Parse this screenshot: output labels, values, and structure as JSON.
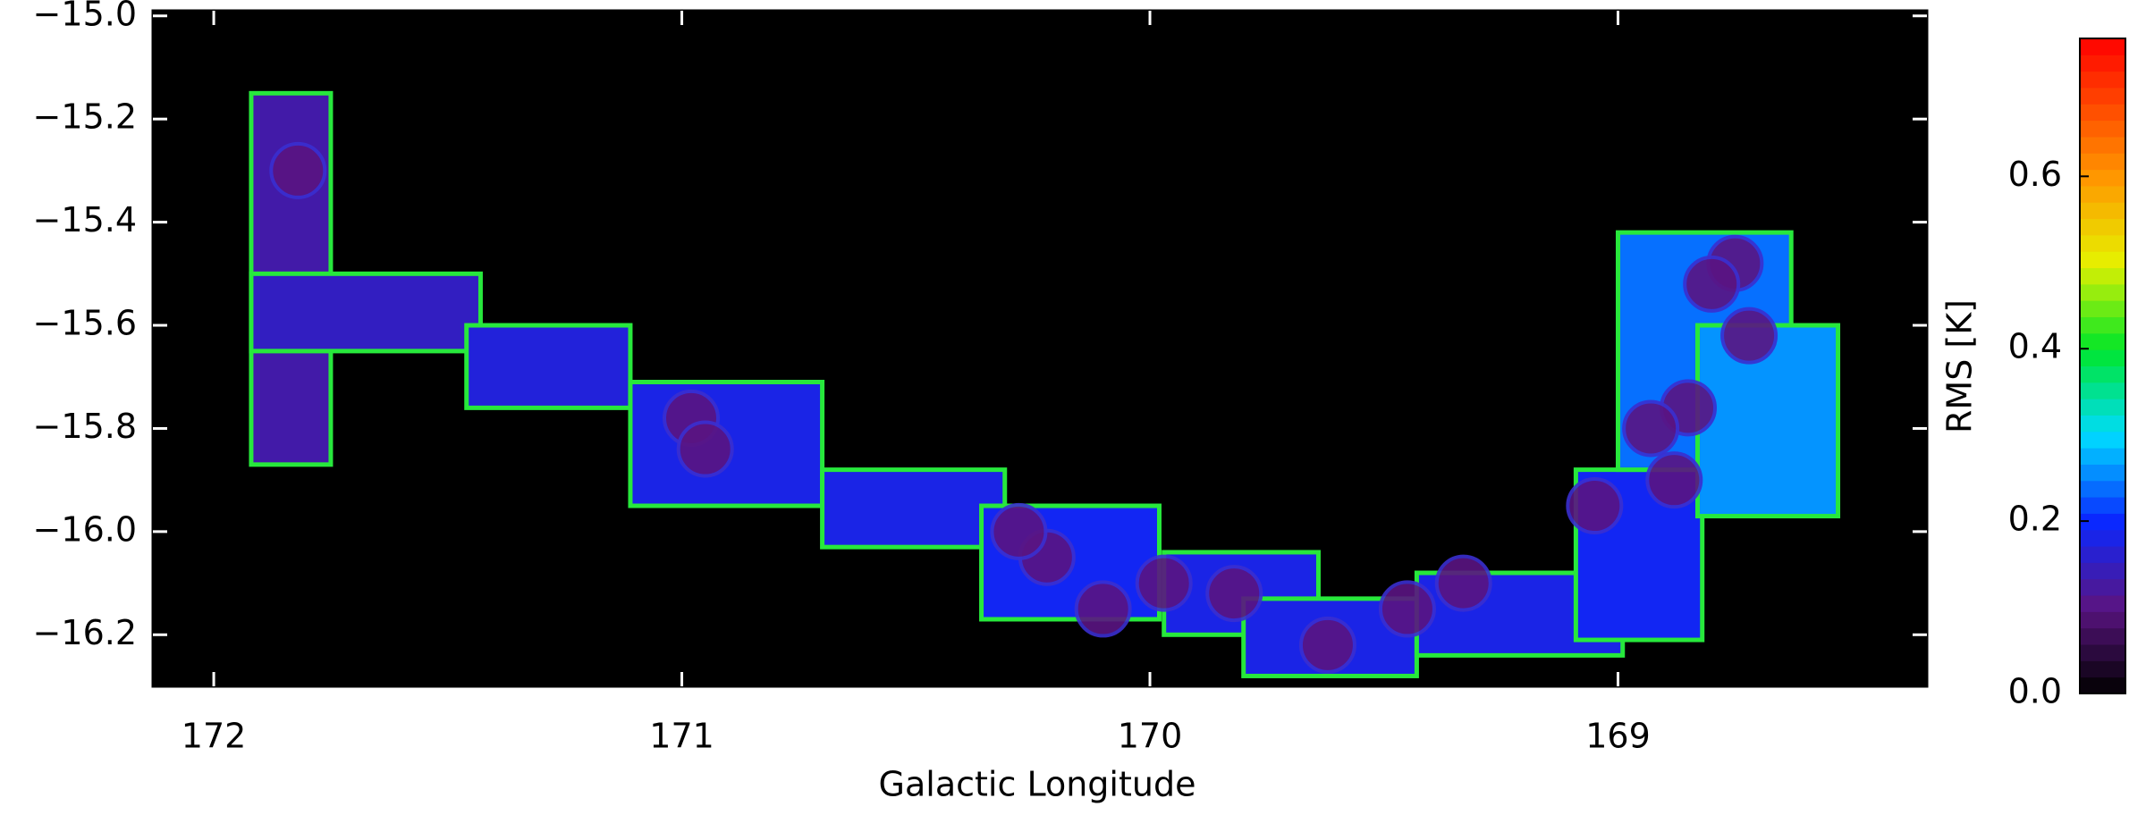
{
  "chart_data": {
    "type": "map",
    "x_label": "Galactic Longitude",
    "colorbar_label": "RMS [K]",
    "xlim": [
      172.13,
      168.34
    ],
    "xticks": [
      172,
      171,
      170,
      169
    ],
    "ylim": [
      -16.3,
      -14.99
    ],
    "yticks": [
      {
        "value": -15.0,
        "label": "−15.0"
      },
      {
        "value": -15.2,
        "label": "−15.2"
      },
      {
        "value": -15.4,
        "label": "−15.4"
      },
      {
        "value": -15.6,
        "label": "−15.6"
      },
      {
        "value": -15.8,
        "label": "−15.8"
      },
      {
        "value": -16.0,
        "label": "−16.0"
      },
      {
        "value": -16.2,
        "label": "−16.2"
      }
    ],
    "clim": [
      0,
      0.76
    ],
    "cticks": [
      {
        "value": 0,
        "label": "0.0"
      },
      {
        "value": 0.2,
        "label": "0.2"
      },
      {
        "value": 0.4,
        "label": "0.4"
      },
      {
        "value": 0.6,
        "label": "0.6"
      }
    ],
    "tiles": [
      {
        "l": [
          171.92,
          171.75
        ],
        "b": [
          -15.15,
          -15.87
        ],
        "rms": 0.13
      },
      {
        "l": [
          171.92,
          171.43
        ],
        "b": [
          -15.5,
          -15.65
        ],
        "rms": 0.15
      },
      {
        "l": [
          171.46,
          171.11
        ],
        "b": [
          -15.6,
          -15.76
        ],
        "rms": 0.17
      },
      {
        "l": [
          171.11,
          170.7
        ],
        "b": [
          -15.71,
          -15.95
        ],
        "rms": 0.18
      },
      {
        "l": [
          170.7,
          170.31
        ],
        "b": [
          -15.88,
          -16.03
        ],
        "rms": 0.18
      },
      {
        "l": [
          170.36,
          169.98
        ],
        "b": [
          -15.95,
          -16.17
        ],
        "rms": 0.19
      },
      {
        "l": [
          169.97,
          169.64
        ],
        "b": [
          -16.04,
          -16.2
        ],
        "rms": 0.18
      },
      {
        "l": [
          169.8,
          169.43
        ],
        "b": [
          -16.13,
          -16.28
        ],
        "rms": 0.18
      },
      {
        "l": [
          169.43,
          168.99
        ],
        "b": [
          -16.08,
          -16.24
        ],
        "rms": 0.18
      },
      {
        "l": [
          169.09,
          168.82
        ],
        "b": [
          -15.88,
          -16.21
        ],
        "rms": 0.19
      },
      {
        "l": [
          169.0,
          168.63
        ],
        "b": [
          -15.42,
          -15.88
        ],
        "rms": 0.24
      },
      {
        "l": [
          168.83,
          168.53
        ],
        "b": [
          -15.6,
          -15.97
        ],
        "rms": 0.26
      }
    ],
    "cores": [
      {
        "l": 168.75,
        "b": -15.48,
        "rms": 0.1
      },
      {
        "l": 168.8,
        "b": -15.52,
        "rms": 0.1
      },
      {
        "l": 168.72,
        "b": -15.62,
        "rms": 0.1
      },
      {
        "l": 168.85,
        "b": -15.76,
        "rms": 0.1
      },
      {
        "l": 168.93,
        "b": -15.8,
        "rms": 0.1
      },
      {
        "l": 168.88,
        "b": -15.9,
        "rms": 0.1
      },
      {
        "l": 169.05,
        "b": -15.95,
        "rms": 0.1
      },
      {
        "l": 169.33,
        "b": -16.1,
        "rms": 0.1
      },
      {
        "l": 169.45,
        "b": -16.15,
        "rms": 0.1
      },
      {
        "l": 169.62,
        "b": -16.22,
        "rms": 0.1
      },
      {
        "l": 169.82,
        "b": -16.12,
        "rms": 0.1
      },
      {
        "l": 169.97,
        "b": -16.1,
        "rms": 0.1
      },
      {
        "l": 170.1,
        "b": -16.15,
        "rms": 0.1
      },
      {
        "l": 170.22,
        "b": -16.05,
        "rms": 0.1
      },
      {
        "l": 170.28,
        "b": -16.0,
        "rms": 0.1
      },
      {
        "l": 170.98,
        "b": -15.78,
        "rms": 0.1
      },
      {
        "l": 170.95,
        "b": -15.84,
        "rms": 0.1
      },
      {
        "l": 171.82,
        "b": -15.3,
        "rms": 0.1
      }
    ]
  }
}
